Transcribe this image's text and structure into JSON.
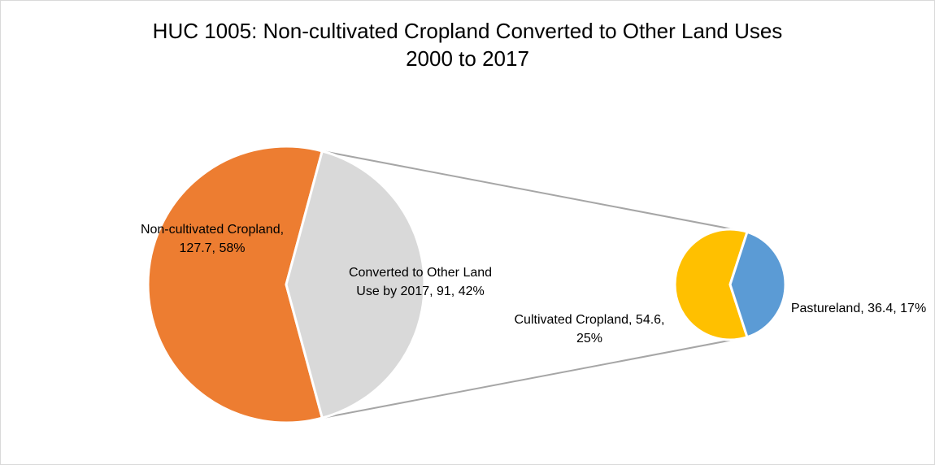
{
  "chart_data": {
    "type": "pie",
    "title": "HUC 1005: Non-cultivated Cropland Converted to Other Land Uses",
    "subtitle": "2000 to 2017",
    "primary_pie": {
      "slices": [
        {
          "label": "Non-cultivated Cropland",
          "value": 127.7,
          "percent": "58%",
          "color": "#ED7D31"
        },
        {
          "label": "Converted to Other Land Use by 2017",
          "value": 91,
          "percent": "42%",
          "color": "#D9D9D9"
        }
      ]
    },
    "secondary_pie": {
      "slices": [
        {
          "label": "Cultivated Cropland",
          "value": 54.6,
          "percent": "25%",
          "color": "#FFC000"
        },
        {
          "label": "Pastureland",
          "value": 36.4,
          "percent": "17%",
          "color": "#5B9BD5"
        }
      ]
    },
    "labels": {
      "noncult_line1": "Non-cultivated Cropland,",
      "noncult_line2": "127.7, 58%",
      "converted_line1": "Converted to Other Land",
      "converted_line2": "Use by 2017, 91, 42%",
      "cultivated_line1": "Cultivated Cropland, 54.6,",
      "cultivated_line2": "25%",
      "pasture_line1": "Pastureland, 36.4, 17%"
    },
    "connector_color": "#A6A6A6"
  }
}
